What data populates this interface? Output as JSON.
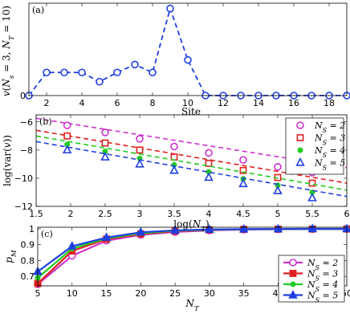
{
  "chart_data": [
    {
      "panel_label": "(a)",
      "type": "line",
      "xlabel": "Site",
      "ylabel": "v(N_s = 3, N_T = 10)",
      "xlim": [
        1,
        19
      ],
      "ylim": [
        0,
        0.07
      ],
      "xticks": [
        2,
        4,
        6,
        8,
        10,
        12,
        14,
        16,
        18
      ],
      "xtick_labels": [
        "2",
        "4",
        "6",
        "8",
        "10",
        "12",
        "14",
        "16",
        "18"
      ],
      "yticks": [
        0
      ],
      "ytick_labels": [
        "0"
      ],
      "grid": false,
      "series": [
        {
          "color": "#1f3fe0",
          "line": "dashed",
          "marker": "circle-open",
          "x": [
            1,
            2,
            3,
            4,
            5,
            6,
            7,
            8,
            9,
            10,
            11,
            12,
            13,
            14,
            15,
            16,
            17,
            18,
            19
          ],
          "values": [
            0.0,
            0.0175,
            0.0175,
            0.0175,
            0.0105,
            0.0175,
            0.0235,
            0.0175,
            0.066,
            0.027,
            0.0,
            0.0,
            0.0,
            0.0,
            0.0,
            0.0,
            0.0,
            0.0,
            0.0
          ]
        }
      ]
    },
    {
      "panel_label": "(b)",
      "type": "line",
      "xlabel": "log(N_T)",
      "ylabel": "log(var(v))",
      "xlim": [
        1.5,
        6
      ],
      "ylim": [
        -12,
        -5.5
      ],
      "xticks": [
        1.5,
        2,
        2.5,
        3,
        3.5,
        4,
        4.5,
        5,
        5.5,
        6
      ],
      "xtick_labels": [
        "1.5",
        "2",
        "2.5",
        "3",
        "3.5",
        "4",
        "4.5",
        "5",
        "5.5",
        "6"
      ],
      "yticks": [
        -12,
        -10,
        -8,
        -6
      ],
      "ytick_labels": [
        "−12",
        "−10",
        "−8",
        "−6"
      ],
      "grid": false,
      "legend_position": "top-right",
      "x_points": [
        1.95,
        2.5,
        3.0,
        3.5,
        4.0,
        4.5,
        5.0,
        5.5
      ],
      "series": [
        {
          "name": "N_S = 2",
          "color": "#cc33cc",
          "marker": "circle-open",
          "line": "dashed",
          "fit": [
            1.5,
            -5.75,
            6.0,
            -9.25
          ],
          "values": [
            -6.25,
            -6.75,
            -7.2,
            -7.75,
            -8.2,
            -8.7,
            -9.2,
            -9.6
          ]
        },
        {
          "name": "N_S = 3",
          "color": "#e02020",
          "marker": "square-open",
          "line": "dashed",
          "fit": [
            1.5,
            -6.6,
            6.0,
            -10.35
          ],
          "values": [
            -7.0,
            -7.5,
            -8.0,
            -8.5,
            -8.95,
            -9.45,
            -9.95,
            -10.35
          ]
        },
        {
          "name": "N_S = 4",
          "color": "#22cc22",
          "marker": "dot-filled",
          "line": "dashed",
          "fit": [
            1.5,
            -7.0,
            6.0,
            -10.85
          ],
          "values": [
            -7.6,
            -8.1,
            -8.6,
            -9.05,
            -9.55,
            -10.05,
            -10.5,
            -11.0
          ]
        },
        {
          "name": "N_S = 5",
          "color": "#1f3fe0",
          "marker": "triangle-open",
          "line": "dashed",
          "fit": [
            1.5,
            -7.4,
            6.0,
            -11.3
          ],
          "values": [
            -8.0,
            -8.5,
            -9.0,
            -9.45,
            -9.95,
            -10.4,
            -10.9,
            -11.4
          ]
        }
      ]
    },
    {
      "panel_label": "(c)",
      "type": "line",
      "xlabel": "N_T",
      "ylabel": "p_M",
      "xlim": [
        5,
        50
      ],
      "ylim": [
        0.64,
        1.01
      ],
      "xticks": [
        5,
        10,
        15,
        20,
        25,
        30,
        35,
        40,
        45,
        50
      ],
      "xtick_labels": [
        "5",
        "10",
        "15",
        "20",
        "25",
        "30",
        "35",
        "40",
        "45",
        "50"
      ],
      "yticks": [
        0.7,
        0.8,
        0.9,
        1
      ],
      "ytick_labels": [
        "0.7",
        "0.8",
        "0.9",
        "1"
      ],
      "grid": false,
      "legend_position": "bottom-right",
      "x": [
        5,
        10,
        15,
        20,
        25,
        30,
        35,
        40,
        45,
        50
      ],
      "series": [
        {
          "name": "N_S = 2",
          "color": "#cc33cc",
          "marker": "circle-open",
          "line": "solid",
          "values": [
            0.65,
            0.83,
            0.925,
            0.962,
            0.98,
            0.99,
            0.995,
            0.997,
            0.998,
            0.999
          ]
        },
        {
          "name": "N_S = 3",
          "color": "#e02020",
          "marker": "square-filled",
          "line": "solid",
          "values": [
            0.655,
            0.86,
            0.935,
            0.968,
            0.985,
            0.993,
            0.997,
            0.998,
            0.999,
            0.999
          ]
        },
        {
          "name": "N_S = 4",
          "color": "#22cc22",
          "marker": "dot-filled",
          "line": "solid",
          "values": [
            0.69,
            0.875,
            0.94,
            0.972,
            0.988,
            0.994,
            0.997,
            0.999,
            0.999,
            1.0
          ]
        },
        {
          "name": "N_S = 5",
          "color": "#1f3fe0",
          "marker": "triangle-filled",
          "line": "solid",
          "values": [
            0.73,
            0.89,
            0.945,
            0.978,
            0.99,
            0.996,
            0.998,
            0.999,
            1.0,
            1.0
          ]
        }
      ]
    }
  ]
}
